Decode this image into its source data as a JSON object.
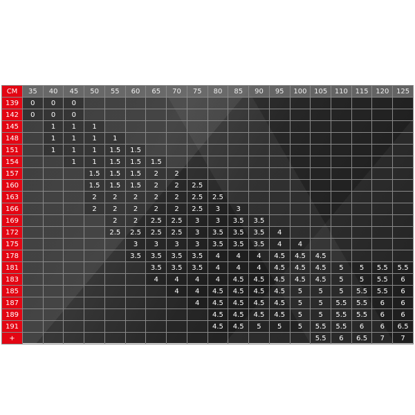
{
  "table": {
    "corner_label": "CM",
    "columns": [
      "35",
      "40",
      "45",
      "50",
      "55",
      "60",
      "65",
      "70",
      "75",
      "80",
      "85",
      "90",
      "95",
      "100",
      "105",
      "110",
      "115",
      "120",
      "125"
    ],
    "rows": [
      {
        "label": "139",
        "values": [
          "0",
          "0",
          "0",
          "",
          "",
          "",
          "",
          "",
          "",
          "",
          "",
          "",
          "",
          "",
          "",
          "",
          "",
          "",
          ""
        ]
      },
      {
        "label": "142",
        "values": [
          "0",
          "0",
          "0",
          "",
          "",
          "",
          "",
          "",
          "",
          "",
          "",
          "",
          "",
          "",
          "",
          "",
          "",
          "",
          ""
        ]
      },
      {
        "label": "145",
        "values": [
          "",
          "1",
          "1",
          "1",
          "",
          "",
          "",
          "",
          "",
          "",
          "",
          "",
          "",
          "",
          "",
          "",
          "",
          "",
          ""
        ]
      },
      {
        "label": "148",
        "values": [
          "",
          "1",
          "1",
          "1",
          "1",
          "",
          "",
          "",
          "",
          "",
          "",
          "",
          "",
          "",
          "",
          "",
          "",
          "",
          ""
        ]
      },
      {
        "label": "151",
        "values": [
          "",
          "1",
          "1",
          "1",
          "1.5",
          "1.5",
          "",
          "",
          "",
          "",
          "",
          "",
          "",
          "",
          "",
          "",
          "",
          "",
          ""
        ]
      },
      {
        "label": "154",
        "values": [
          "",
          "",
          "1",
          "1",
          "1.5",
          "1.5",
          "1.5",
          "",
          "",
          "",
          "",
          "",
          "",
          "",
          "",
          "",
          "",
          "",
          ""
        ]
      },
      {
        "label": "157",
        "values": [
          "",
          "",
          "",
          "1.5",
          "1.5",
          "1.5",
          "2",
          "2",
          "",
          "",
          "",
          "",
          "",
          "",
          "",
          "",
          "",
          "",
          ""
        ]
      },
      {
        "label": "160",
        "values": [
          "",
          "",
          "",
          "1.5",
          "1.5",
          "1.5",
          "2",
          "2",
          "2.5",
          "",
          "",
          "",
          "",
          "",
          "",
          "",
          "",
          "",
          ""
        ]
      },
      {
        "label": "163",
        "values": [
          "",
          "",
          "",
          "2",
          "2",
          "2",
          "2",
          "2",
          "2.5",
          "2.5",
          "",
          "",
          "",
          "",
          "",
          "",
          "",
          "",
          ""
        ]
      },
      {
        "label": "166",
        "values": [
          "",
          "",
          "",
          "2",
          "2",
          "2",
          "2",
          "2",
          "2.5",
          "3",
          "3",
          "",
          "",
          "",
          "",
          "",
          "",
          "",
          ""
        ]
      },
      {
        "label": "169",
        "values": [
          "",
          "",
          "",
          "",
          "2",
          "2",
          "2.5",
          "2.5",
          "3",
          "3",
          "3.5",
          "3.5",
          "",
          "",
          "",
          "",
          "",
          "",
          ""
        ]
      },
      {
        "label": "172",
        "values": [
          "",
          "",
          "",
          "",
          "2.5",
          "2.5",
          "2.5",
          "2.5",
          "3",
          "3.5",
          "3.5",
          "3.5",
          "4",
          "",
          "",
          "",
          "",
          "",
          ""
        ]
      },
      {
        "label": "175",
        "values": [
          "",
          "",
          "",
          "",
          "",
          "3",
          "3",
          "3",
          "3",
          "3.5",
          "3.5",
          "3.5",
          "4",
          "4",
          "",
          "",
          "",
          "",
          ""
        ]
      },
      {
        "label": "178",
        "values": [
          "",
          "",
          "",
          "",
          "",
          "3.5",
          "3.5",
          "3.5",
          "3.5",
          "4",
          "4",
          "4",
          "4.5",
          "4.5",
          "4.5",
          "",
          "",
          "",
          ""
        ]
      },
      {
        "label": "181",
        "values": [
          "",
          "",
          "",
          "",
          "",
          "",
          "3.5",
          "3.5",
          "3.5",
          "4",
          "4",
          "4",
          "4.5",
          "4.5",
          "4.5",
          "5",
          "5",
          "5.5",
          "5.5"
        ]
      },
      {
        "label": "183",
        "values": [
          "",
          "",
          "",
          "",
          "",
          "",
          "4",
          "4",
          "4",
          "4",
          "4.5",
          "4.5",
          "4.5",
          "4.5",
          "4.5",
          "5",
          "5",
          "5.5",
          "6"
        ]
      },
      {
        "label": "185",
        "values": [
          "",
          "",
          "",
          "",
          "",
          "",
          "",
          "4",
          "4",
          "4.5",
          "4.5",
          "4.5",
          "4.5",
          "5",
          "5",
          "5",
          "5.5",
          "5.5",
          "6"
        ]
      },
      {
        "label": "187",
        "values": [
          "",
          "",
          "",
          "",
          "",
          "",
          "",
          "",
          "4",
          "4.5",
          "4.5",
          "4.5",
          "4.5",
          "5",
          "5",
          "5.5",
          "5.5",
          "6",
          "6"
        ]
      },
      {
        "label": "189",
        "values": [
          "",
          "",
          "",
          "",
          "",
          "",
          "",
          "",
          "",
          "4.5",
          "4.5",
          "4.5",
          "4.5",
          "5",
          "5",
          "5.5",
          "5.5",
          "6",
          "6"
        ]
      },
      {
        "label": "191",
        "values": [
          "",
          "",
          "",
          "",
          "",
          "",
          "",
          "",
          "",
          "4.5",
          "4.5",
          "5",
          "5",
          "5",
          "5.5",
          "5.5",
          "6",
          "6",
          "6.5"
        ]
      },
      {
        "label": "+",
        "values": [
          "",
          "",
          "",
          "",
          "",
          "",
          "",
          "",
          "",
          "",
          "",
          "",
          "",
          "",
          "5.5",
          "6",
          "6.5",
          "7",
          "7"
        ]
      }
    ]
  },
  "colors": {
    "header_accent": "#e30613",
    "header_gray": "#6e6e6e",
    "background": "#2e2e2e"
  }
}
